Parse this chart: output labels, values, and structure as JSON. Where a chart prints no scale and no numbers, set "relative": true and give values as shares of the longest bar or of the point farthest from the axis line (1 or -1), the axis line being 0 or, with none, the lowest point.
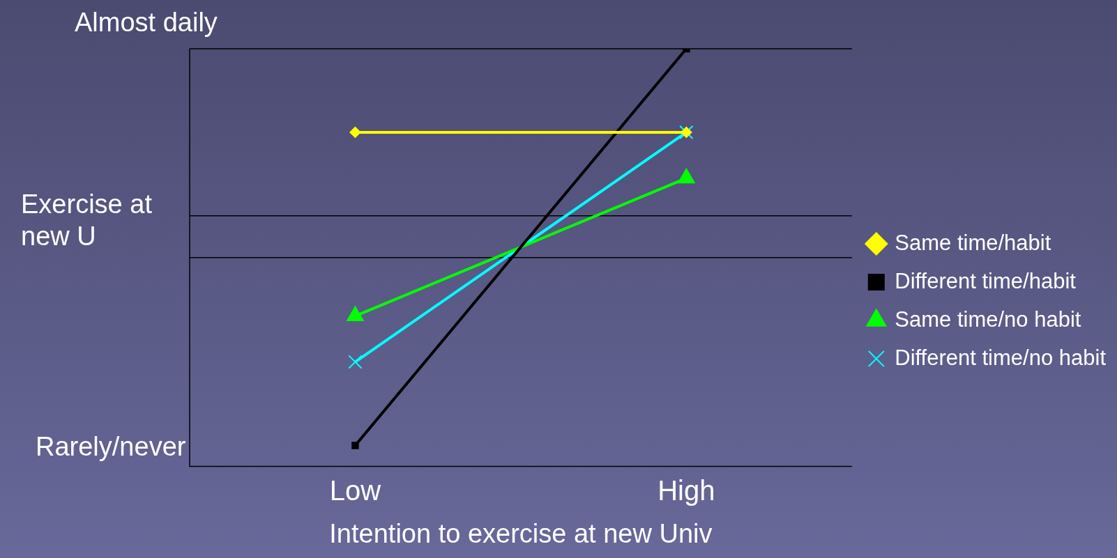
{
  "chart_data": {
    "type": "line",
    "xlabel": "Intention to exercise at new Univ",
    "ylabel": "Exercise at new U",
    "categories": [
      "Low",
      "High"
    ],
    "relative": true,
    "annotations": [
      "Almost daily",
      "Rarely/never"
    ],
    "legend": "right",
    "ref_lines": [
      {
        "axis": "y",
        "value": 1.0,
        "color": "#000000"
      },
      {
        "axis": "y",
        "value": 0.6,
        "color": "#000000"
      },
      {
        "axis": "y",
        "value": 0.5,
        "color": "#000000"
      }
    ],
    "series": [
      {
        "name": "Same time/habit",
        "color": "#ffff00",
        "marker": "diamond",
        "values": [
          0.8,
          0.8
        ]
      },
      {
        "name": "Different time/habit",
        "color": "#000000",
        "marker": "square",
        "values": [
          0.05,
          1.0
        ]
      },
      {
        "name": "Same time/no habit",
        "color": "#00ff00",
        "marker": "triangle",
        "values": [
          0.36,
          0.69
        ]
      },
      {
        "name": "Different time/no habit",
        "color": "#00ffff",
        "marker": "cross",
        "values": [
          0.25,
          0.8
        ]
      }
    ]
  }
}
